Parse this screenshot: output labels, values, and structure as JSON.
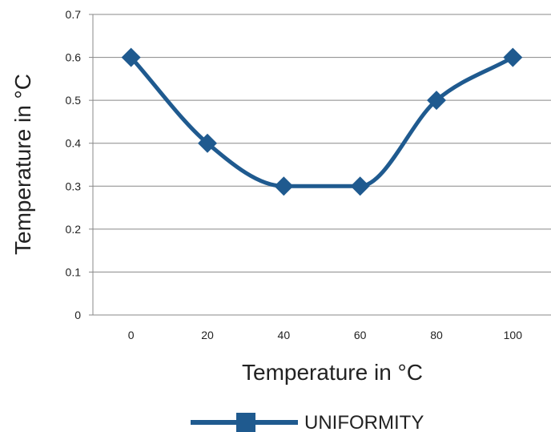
{
  "chart_data": {
    "type": "line",
    "x": [
      0,
      20,
      40,
      60,
      80,
      100
    ],
    "x_tick_labels": [
      "0",
      "20",
      "40",
      "60",
      "80",
      "100"
    ],
    "series": [
      {
        "name": "UNIFORMITY",
        "values": [
          0.6,
          0.4,
          0.3,
          0.3,
          0.5,
          0.6
        ],
        "color": "#1f5a8f",
        "marker": "diamond",
        "smooth": true
      }
    ],
    "xlabel": "Temperature in °C",
    "ylabel": "Temperature in °C",
    "ylim": [
      0,
      0.7
    ],
    "y_ticks": [
      "0",
      "0.1",
      "0.2",
      "0.3",
      "0.4",
      "0.5",
      "0.6",
      "0.7"
    ],
    "grid": true,
    "legend_position": "bottom"
  }
}
